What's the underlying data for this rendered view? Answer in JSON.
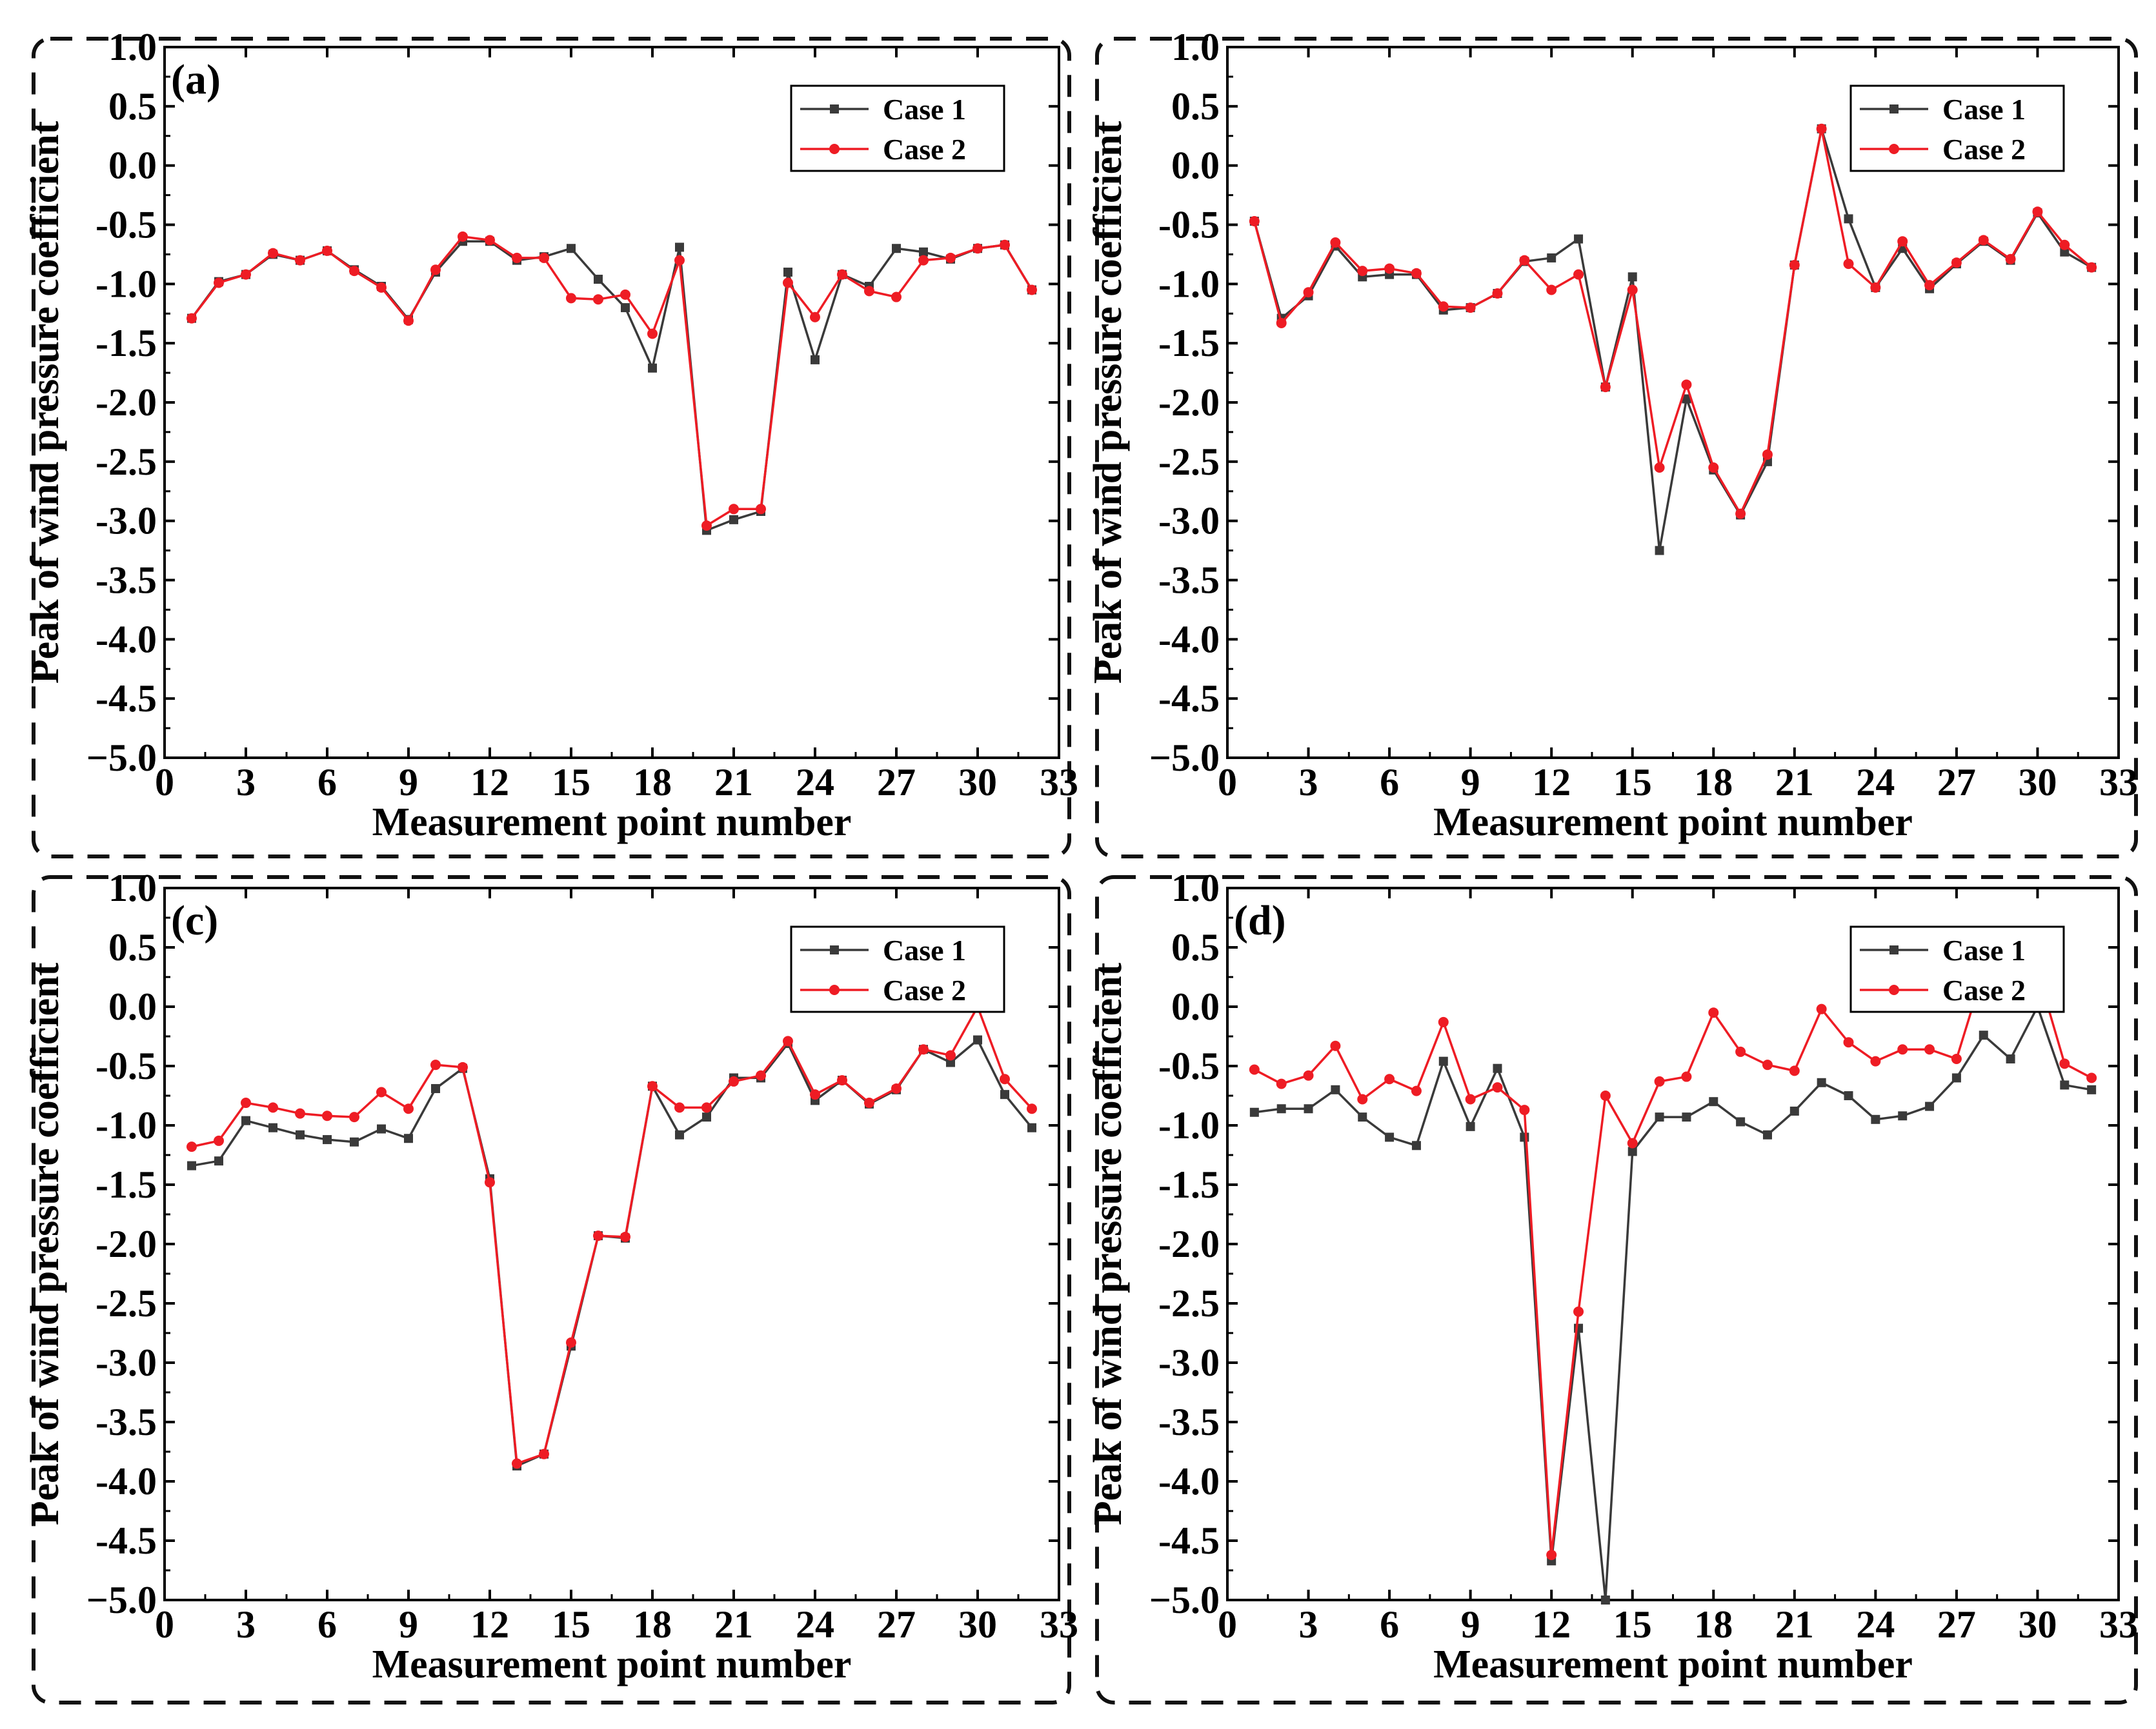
{
  "colors": {
    "case1": "#3a3a3a",
    "case2": "#ee1c24",
    "frame": "#111111",
    "background": "#ffffff"
  },
  "chart_data": [
    {
      "type": "line",
      "panel_label": "(a)",
      "xlabel": "Measurement point number",
      "ylabel": "Peak of wind pressure coefficient",
      "xlim": [
        0,
        33
      ],
      "ylim": [
        -5.0,
        1.0
      ],
      "xticks": [
        0,
        3,
        6,
        9,
        12,
        15,
        18,
        21,
        24,
        27,
        30,
        33
      ],
      "yticks": [
        1.0,
        0.5,
        0.0,
        -0.5,
        -1.0,
        -1.5,
        -2.0,
        -2.5,
        -3.0,
        -3.5,
        -4.0,
        -4.5,
        -5.0
      ],
      "ytick_labels": [
        "1.0",
        "0.5",
        "0.0",
        "-0.5",
        "-1.0",
        "-1.5",
        "-2.0",
        "-2.5",
        "-3.0",
        "-3.5",
        "-4.0",
        "-4.5",
        "−5.0"
      ],
      "legend_position": "top-right",
      "x": [
        1,
        2,
        3,
        4,
        5,
        6,
        7,
        8,
        9,
        10,
        11,
        12,
        13,
        14,
        15,
        16,
        17,
        18,
        19,
        20,
        21,
        22,
        23,
        24,
        25,
        26,
        27,
        28,
        29,
        30,
        31,
        32
      ],
      "series": [
        {
          "name": "Case 1",
          "marker": "square",
          "values": [
            -1.29,
            -0.98,
            -0.92,
            -0.75,
            -0.8,
            -0.72,
            -0.88,
            -1.02,
            -1.3,
            -0.9,
            -0.64,
            -0.64,
            -0.8,
            -0.77,
            -0.7,
            -0.96,
            -1.2,
            -1.71,
            -0.69,
            -3.08,
            -2.99,
            -2.92,
            -0.9,
            -1.64,
            -0.92,
            -1.02,
            -0.7,
            -0.73,
            -0.79,
            -0.7,
            -0.67,
            -1.05
          ]
        },
        {
          "name": "Case 2",
          "marker": "circle",
          "values": [
            -1.29,
            -0.99,
            -0.92,
            -0.74,
            -0.8,
            -0.72,
            -0.89,
            -1.03,
            -1.31,
            -0.88,
            -0.6,
            -0.63,
            -0.78,
            -0.78,
            -1.12,
            -1.13,
            -1.09,
            -1.42,
            -0.8,
            -3.04,
            -2.9,
            -2.9,
            -0.99,
            -1.28,
            -0.92,
            -1.06,
            -1.11,
            -0.8,
            -0.78,
            -0.7,
            -0.67,
            -1.05
          ]
        }
      ]
    },
    {
      "type": "line",
      "panel_label": "",
      "xlabel": "Measurement point number",
      "ylabel": "Peak of wind pressure coefficient",
      "xlim": [
        0,
        33
      ],
      "ylim": [
        -5.0,
        1.0
      ],
      "xticks": [
        0,
        3,
        6,
        9,
        12,
        15,
        18,
        21,
        24,
        27,
        30,
        33
      ],
      "yticks": [
        1.0,
        0.5,
        0.0,
        -0.5,
        -1.0,
        -1.5,
        -2.0,
        -2.5,
        -3.0,
        -3.5,
        -4.0,
        -4.5,
        -5.0
      ],
      "ytick_labels": [
        "1.0",
        "0.5",
        "0.0",
        "-0.5",
        "-1.0",
        "-1.5",
        "-2.0",
        "-2.5",
        "-3.0",
        "-3.5",
        "-4.0",
        "-4.5",
        "−5.0"
      ],
      "legend_position": "top-right",
      "x": [
        1,
        2,
        3,
        4,
        5,
        6,
        7,
        8,
        9,
        10,
        11,
        12,
        13,
        14,
        15,
        16,
        17,
        18,
        19,
        20,
        21,
        22,
        23,
        24,
        25,
        26,
        27,
        28,
        29,
        30,
        31,
        32
      ],
      "series": [
        {
          "name": "Case 1",
          "marker": "square",
          "values": [
            -0.47,
            -1.29,
            -1.1,
            -0.68,
            -0.94,
            -0.92,
            -0.92,
            -1.22,
            -1.2,
            -1.08,
            -0.81,
            -0.78,
            -0.62,
            -1.87,
            -0.94,
            -3.25,
            -1.97,
            -2.57,
            -2.95,
            -2.5,
            -0.84,
            0.31,
            -0.45,
            -1.03,
            -0.7,
            -1.04,
            -0.83,
            -0.64,
            -0.8,
            -0.4,
            -0.73,
            -0.86
          ]
        },
        {
          "name": "Case 2",
          "marker": "circle",
          "values": [
            -0.47,
            -1.33,
            -1.07,
            -0.65,
            -0.89,
            -0.87,
            -0.91,
            -1.19,
            -1.2,
            -1.08,
            -0.8,
            -1.05,
            -0.92,
            -1.87,
            -1.05,
            -2.55,
            -1.85,
            -2.55,
            -2.94,
            -2.44,
            -0.84,
            0.31,
            -0.83,
            -1.03,
            -0.64,
            -1.01,
            -0.82,
            -0.63,
            -0.79,
            -0.39,
            -0.67,
            -0.86
          ]
        }
      ]
    },
    {
      "type": "line",
      "panel_label": "(c)",
      "xlabel": "Measurement point number",
      "ylabel": "Peak of wind pressure coefficient",
      "xlim": [
        0,
        33
      ],
      "ylim": [
        -5.0,
        1.0
      ],
      "xticks": [
        0,
        3,
        6,
        9,
        12,
        15,
        18,
        21,
        24,
        27,
        30,
        33
      ],
      "yticks": [
        1.0,
        0.5,
        0.0,
        -0.5,
        -1.0,
        -1.5,
        -2.0,
        -2.5,
        -3.0,
        -3.5,
        -4.0,
        -4.5,
        -5.0
      ],
      "ytick_labels": [
        "1.0",
        "0.5",
        "0.0",
        "-0.5",
        "-1.0",
        "-1.5",
        "-2.0",
        "-2.5",
        "-3.0",
        "-3.5",
        "-4.0",
        "-4.5",
        "−5.0"
      ],
      "legend_position": "top-right",
      "x": [
        1,
        2,
        3,
        4,
        5,
        6,
        7,
        8,
        9,
        10,
        11,
        12,
        13,
        14,
        15,
        16,
        17,
        18,
        19,
        20,
        21,
        22,
        23,
        24,
        25,
        26,
        27,
        28,
        29,
        30,
        31,
        32
      ],
      "series": [
        {
          "name": "Case 1",
          "marker": "square",
          "values": [
            -1.34,
            -1.3,
            -0.96,
            -1.02,
            -1.08,
            -1.12,
            -1.14,
            -1.03,
            -1.11,
            -0.69,
            -0.52,
            -1.45,
            -3.87,
            -3.77,
            -2.86,
            -1.93,
            -1.95,
            -0.67,
            -1.08,
            -0.93,
            -0.6,
            -0.6,
            -0.31,
            -0.79,
            -0.62,
            -0.82,
            -0.7,
            -0.36,
            -0.47,
            -0.28,
            -0.74,
            -1.02
          ]
        },
        {
          "name": "Case 2",
          "marker": "circle",
          "values": [
            -1.18,
            -1.13,
            -0.81,
            -0.85,
            -0.9,
            -0.92,
            -0.93,
            -0.72,
            -0.86,
            -0.49,
            -0.51,
            -1.48,
            -3.85,
            -3.77,
            -2.83,
            -1.93,
            -1.94,
            -0.67,
            -0.85,
            -0.85,
            -0.63,
            -0.58,
            -0.29,
            -0.74,
            -0.62,
            -0.81,
            -0.69,
            -0.36,
            -0.41,
            0.0,
            -0.61,
            -0.86
          ]
        }
      ]
    },
    {
      "type": "line",
      "panel_label": "(d)",
      "xlabel": "Measurement point number",
      "ylabel": "Peak of wind pressure coefficient",
      "xlim": [
        0,
        33
      ],
      "ylim": [
        -5.0,
        1.0
      ],
      "xticks": [
        0,
        3,
        6,
        9,
        12,
        15,
        18,
        21,
        24,
        27,
        30,
        33
      ],
      "yticks": [
        1.0,
        0.5,
        0.0,
        -0.5,
        -1.0,
        -1.5,
        -2.0,
        -2.5,
        -3.0,
        -3.5,
        -4.0,
        -4.5,
        -5.0
      ],
      "ytick_labels": [
        "1.0",
        "0.5",
        "0.0",
        "-0.5",
        "-1.0",
        "-1.5",
        "-2.0",
        "-2.5",
        "-3.0",
        "-3.5",
        "-4.0",
        "-4.5",
        "−5.0"
      ],
      "legend_position": "top-right",
      "x": [
        1,
        2,
        3,
        4,
        5,
        6,
        7,
        8,
        9,
        10,
        11,
        12,
        13,
        14,
        15,
        16,
        17,
        18,
        19,
        20,
        21,
        22,
        23,
        24,
        25,
        26,
        27,
        28,
        29,
        30,
        31,
        32
      ],
      "series": [
        {
          "name": "Case 1",
          "marker": "square",
          "values": [
            -0.89,
            -0.86,
            -0.86,
            -0.7,
            -0.93,
            -1.1,
            -1.17,
            -0.46,
            -1.01,
            -0.52,
            -1.1,
            -4.67,
            -2.71,
            -5.0,
            -1.22,
            -0.93,
            -0.93,
            -0.8,
            -0.97,
            -1.08,
            -0.88,
            -0.64,
            -0.75,
            -0.95,
            -0.92,
            -0.84,
            -0.6,
            -0.24,
            -0.44,
            0.0,
            -0.66,
            -0.7
          ]
        },
        {
          "name": "Case 2",
          "marker": "circle",
          "values": [
            -0.53,
            -0.65,
            -0.58,
            -0.33,
            -0.78,
            -0.61,
            -0.71,
            -0.13,
            -0.78,
            -0.68,
            -0.87,
            -4.62,
            -2.57,
            -0.75,
            -1.15,
            -0.63,
            -0.59,
            -0.05,
            -0.38,
            -0.49,
            -0.54,
            -0.02,
            -0.3,
            -0.46,
            -0.36,
            -0.36,
            -0.44,
            0.3,
            0.3,
            0.3,
            -0.48,
            -0.6
          ]
        }
      ]
    }
  ]
}
